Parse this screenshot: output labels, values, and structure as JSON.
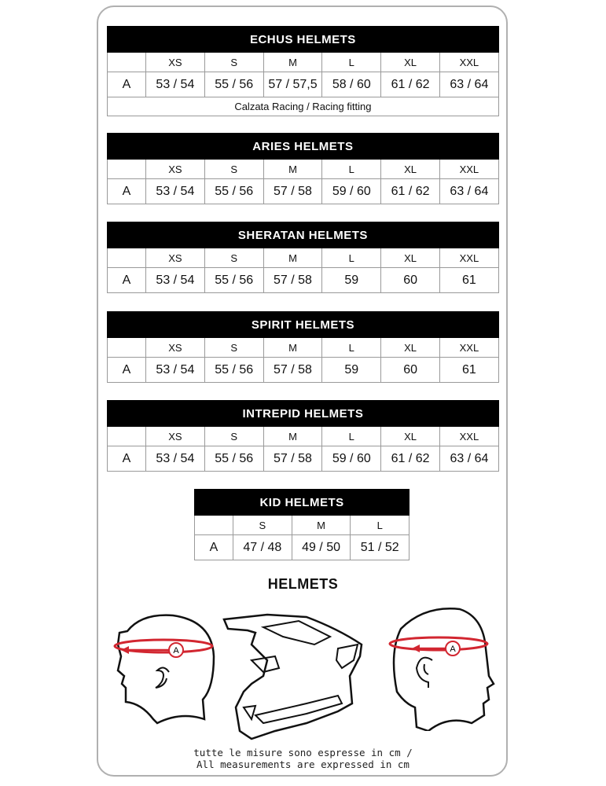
{
  "tables": [
    {
      "title": "ECHUS HELMETS",
      "sizes": [
        "XS",
        "S",
        "M",
        "L",
        "XL",
        "XXL"
      ],
      "row_label": "A",
      "values": [
        "53 / 54",
        "55 / 56",
        "57 / 57,5",
        "58 / 60",
        "61 / 62",
        "63 / 64"
      ],
      "footer": "Calzata Racing  /  Racing fitting"
    },
    {
      "title": "ARIES HELMETS",
      "sizes": [
        "XS",
        "S",
        "M",
        "L",
        "XL",
        "XXL"
      ],
      "row_label": "A",
      "values": [
        "53 / 54",
        "55 / 56",
        "57 / 58",
        "59 / 60",
        "61 / 62",
        "63 / 64"
      ]
    },
    {
      "title": "SHERATAN HELMETS",
      "sizes": [
        "XS",
        "S",
        "M",
        "L",
        "XL",
        "XXL"
      ],
      "row_label": "A",
      "values": [
        "53 / 54",
        "55 / 56",
        "57 / 58",
        "59",
        "60",
        "61"
      ]
    },
    {
      "title": "SPIRIT HELMETS",
      "sizes": [
        "XS",
        "S",
        "M",
        "L",
        "XL",
        "XXL"
      ],
      "row_label": "A",
      "values": [
        "53 / 54",
        "55 / 56",
        "57 / 58",
        "59",
        "60",
        "61"
      ]
    },
    {
      "title": "INTREPID HELMETS",
      "sizes": [
        "XS",
        "S",
        "M",
        "L",
        "XL",
        "XXL"
      ],
      "row_label": "A",
      "values": [
        "53 / 54",
        "55 / 56",
        "57 / 58",
        "59 / 60",
        "61 / 62",
        "63 / 64"
      ]
    },
    {
      "title": "KID HELMETS",
      "sizes": [
        "S",
        "M",
        "L"
      ],
      "row_label": "A",
      "values": [
        "47 / 48",
        "49 / 50",
        "51 / 52"
      ]
    }
  ],
  "helmets_title": "HELMETS",
  "measure_marker": "A",
  "note_it": "tutte le misure sono espresse in cm /",
  "note_en": "All measurements are expressed in cm",
  "colors": {
    "title_bar": "#000000",
    "measure_line": "#d22630"
  }
}
